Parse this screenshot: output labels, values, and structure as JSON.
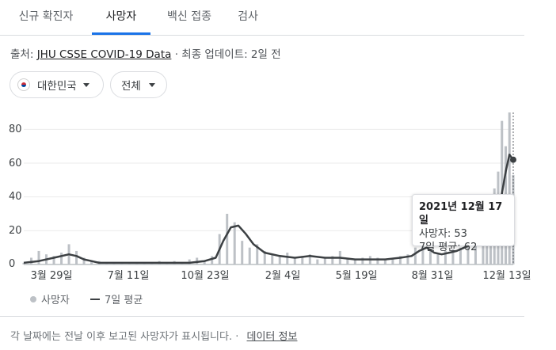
{
  "tabs": [
    {
      "label": "신규 확진자",
      "active": false
    },
    {
      "label": "사망자",
      "active": true
    },
    {
      "label": "백신 접종",
      "active": false
    },
    {
      "label": "검사",
      "active": false
    }
  ],
  "source": {
    "prefix": "출처:",
    "link": "JHU CSSE COVID-19 Data",
    "separator": "·",
    "updated": "최종 업데이트: 2일 전"
  },
  "filters": {
    "country": {
      "label": "대한민국",
      "flag": "south-korea-flag-icon"
    },
    "scope": {
      "label": "전체"
    }
  },
  "chart_data": {
    "type": "bar",
    "title": "",
    "xlabel": "",
    "ylabel": "",
    "ylim": [
      0,
      90
    ],
    "yticks": [
      "0",
      "20",
      "40",
      "60",
      "80"
    ],
    "xticks": [
      "3월 29일",
      "7월 11일",
      "10월 23일",
      "2월 4일",
      "5월 19일",
      "8월 31일",
      "12월 13일"
    ],
    "grid": true,
    "legend_position": "bottom-left",
    "bar_color": "#bdc1c6",
    "line_color": "#3c4043",
    "series": [
      {
        "name": "사망자",
        "kind": "bar",
        "x": [
          0,
          10,
          20,
          30,
          40,
          50,
          60,
          70,
          80,
          90,
          100,
          110,
          120,
          130,
          140,
          150,
          160,
          170,
          180,
          190,
          200,
          210,
          220,
          230,
          240,
          250,
          260,
          270,
          280,
          290,
          300,
          310,
          320,
          330,
          340,
          350,
          360,
          370,
          380,
          390,
          400,
          410,
          420,
          430,
          440,
          450,
          460,
          470,
          480,
          490,
          500,
          510,
          520,
          530,
          540,
          550,
          560,
          570,
          580,
          590,
          600,
          610,
          615,
          620,
          625,
          630,
          635,
          640,
          645,
          650
        ],
        "values": [
          1,
          4,
          8,
          6,
          5,
          7,
          12,
          8,
          4,
          2,
          2,
          1,
          1,
          1,
          1,
          1,
          1,
          1,
          2,
          1,
          2,
          1,
          3,
          4,
          2,
          5,
          18,
          30,
          25,
          14,
          10,
          12,
          8,
          6,
          5,
          7,
          4,
          5,
          6,
          3,
          4,
          5,
          8,
          4,
          3,
          4,
          5,
          4,
          3,
          4,
          5,
          6,
          10,
          14,
          8,
          6,
          8,
          9,
          10,
          12,
          14,
          20,
          30,
          35,
          45,
          55,
          85,
          70,
          90,
          53
        ]
      },
      {
        "name": "7일 평균",
        "kind": "line",
        "x": [
          0,
          20,
          40,
          60,
          70,
          80,
          90,
          100,
          120,
          140,
          160,
          180,
          200,
          220,
          240,
          255,
          265,
          275,
          285,
          295,
          305,
          320,
          340,
          360,
          380,
          400,
          420,
          440,
          460,
          480,
          500,
          515,
          525,
          535,
          545,
          555,
          565,
          575,
          585,
          595,
          605,
          615,
          625,
          635,
          640,
          645,
          650
        ],
        "values": [
          1,
          2,
          4,
          6,
          5,
          3,
          2,
          1,
          1,
          1,
          1,
          1,
          1,
          1,
          2,
          4,
          14,
          22,
          23,
          18,
          12,
          7,
          5,
          4,
          5,
          4,
          4,
          3,
          3,
          3,
          4,
          5,
          8,
          10,
          7,
          6,
          7,
          8,
          10,
          12,
          15,
          20,
          28,
          42,
          55,
          65,
          62
        ]
      }
    ]
  },
  "tooltip": {
    "date": "2021년 12월 17일",
    "deaths": "사망자: 53",
    "average": "7일 평균: 62"
  },
  "legend": {
    "deaths_label": "사망자",
    "average_label": "7일 평균"
  },
  "footer": {
    "note": "각 날짜에는 전날 이후 보고된 사망자가 표시됩니다.",
    "separator": "·",
    "link": "데이터 정보"
  }
}
